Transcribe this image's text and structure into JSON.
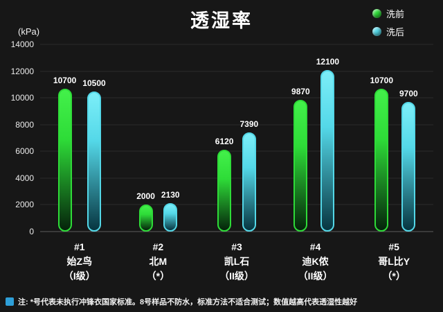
{
  "title": "透湿率",
  "note": "注: *号代表未执行冲锋衣国家标准。8号样品不防水，标准方法不适合测试；数值越高代表透湿性越好",
  "colors": {
    "background": "#171717",
    "text": "#ffffff",
    "note_icon": "#2e9fd8",
    "series_pre_wash": "#2edc38",
    "series_post_wash": "#54d8e8"
  },
  "chart_data": {
    "type": "bar",
    "title": "透湿率",
    "ylabel": "(kPa)",
    "xlabel": "",
    "ylim": [
      0,
      14000
    ],
    "ytick_step": 2000,
    "grid": true,
    "legend_position": "top-right",
    "categories": [
      [
        "#1",
        "始Z鸟",
        "（I级）"
      ],
      [
        "#2",
        "北M",
        "（*）"
      ],
      [
        "#3",
        "凯L石",
        "（II级）"
      ],
      [
        "#4",
        "迪K侬",
        "（II级）"
      ],
      [
        "#5",
        "哥L比Y",
        "（*）"
      ]
    ],
    "series": [
      {
        "name": "洗前",
        "color": "#2edc38",
        "gradient_top": "#43f04a",
        "gradient_bottom": "#05230b",
        "values": [
          10700,
          2000,
          6120,
          9870,
          10700
        ]
      },
      {
        "name": "洗后",
        "color": "#54d8e8",
        "gradient_top": "#7ceef8",
        "gradient_bottom": "#073540",
        "values": [
          10500,
          2130,
          7390,
          12100,
          9700
        ]
      }
    ]
  }
}
